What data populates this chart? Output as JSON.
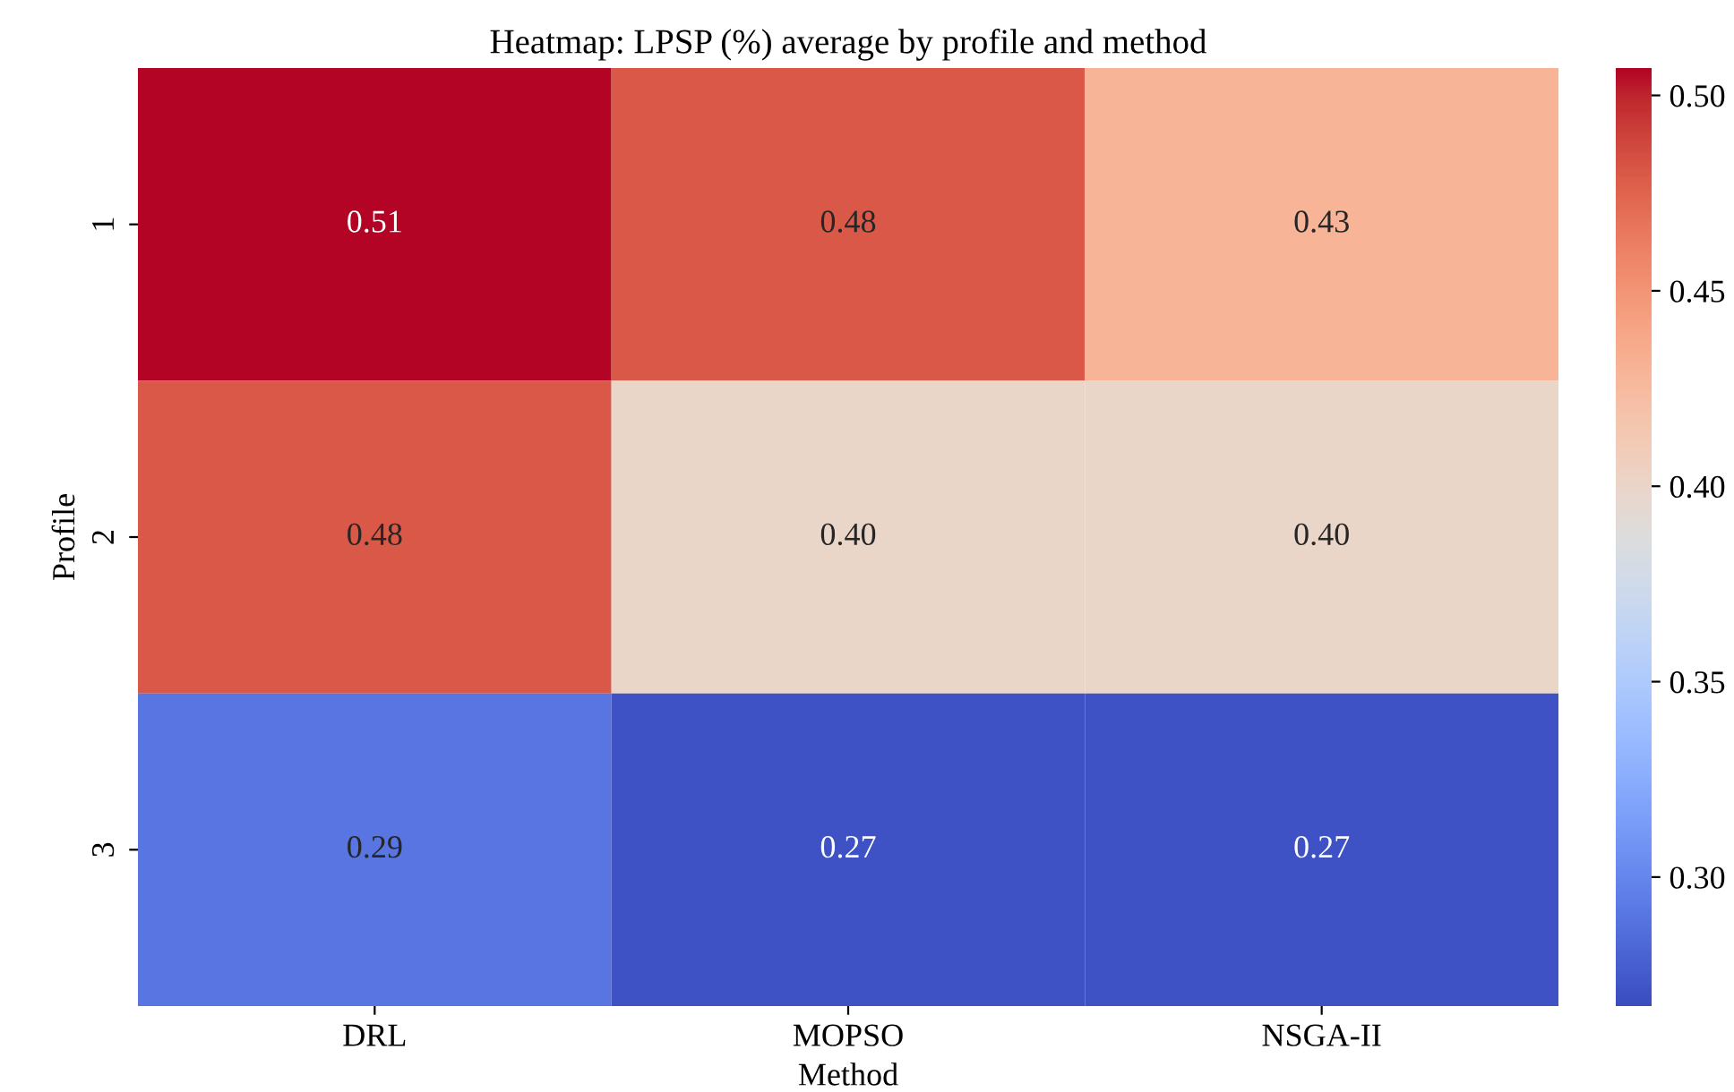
{
  "chart_data": {
    "type": "heatmap",
    "title": "Heatmap: LPSP (%) average by profile and method",
    "xlabel": "Method",
    "ylabel": "Profile",
    "categories": [
      "DRL",
      "MOPSO",
      "NSGA-II"
    ],
    "y_categories": [
      "1",
      "2",
      "3"
    ],
    "cells": [
      [
        0.51,
        0.48,
        0.43
      ],
      [
        0.48,
        0.4,
        0.4
      ],
      [
        0.29,
        0.27,
        0.27
      ]
    ],
    "cell_labels": [
      [
        "0.51",
        "0.48",
        "0.43"
      ],
      [
        "0.48",
        "0.40",
        "0.40"
      ],
      [
        "0.29",
        "0.27",
        "0.27"
      ]
    ],
    "clim": [
      0.267,
      0.507
    ],
    "cticks": [
      {
        "value": 0.3,
        "label": "0.30"
      },
      {
        "value": 0.35,
        "label": "0.35"
      },
      {
        "value": 0.4,
        "label": "0.40"
      },
      {
        "value": 0.45,
        "label": "0.45"
      },
      {
        "value": 0.5,
        "label": "0.50"
      }
    ]
  }
}
